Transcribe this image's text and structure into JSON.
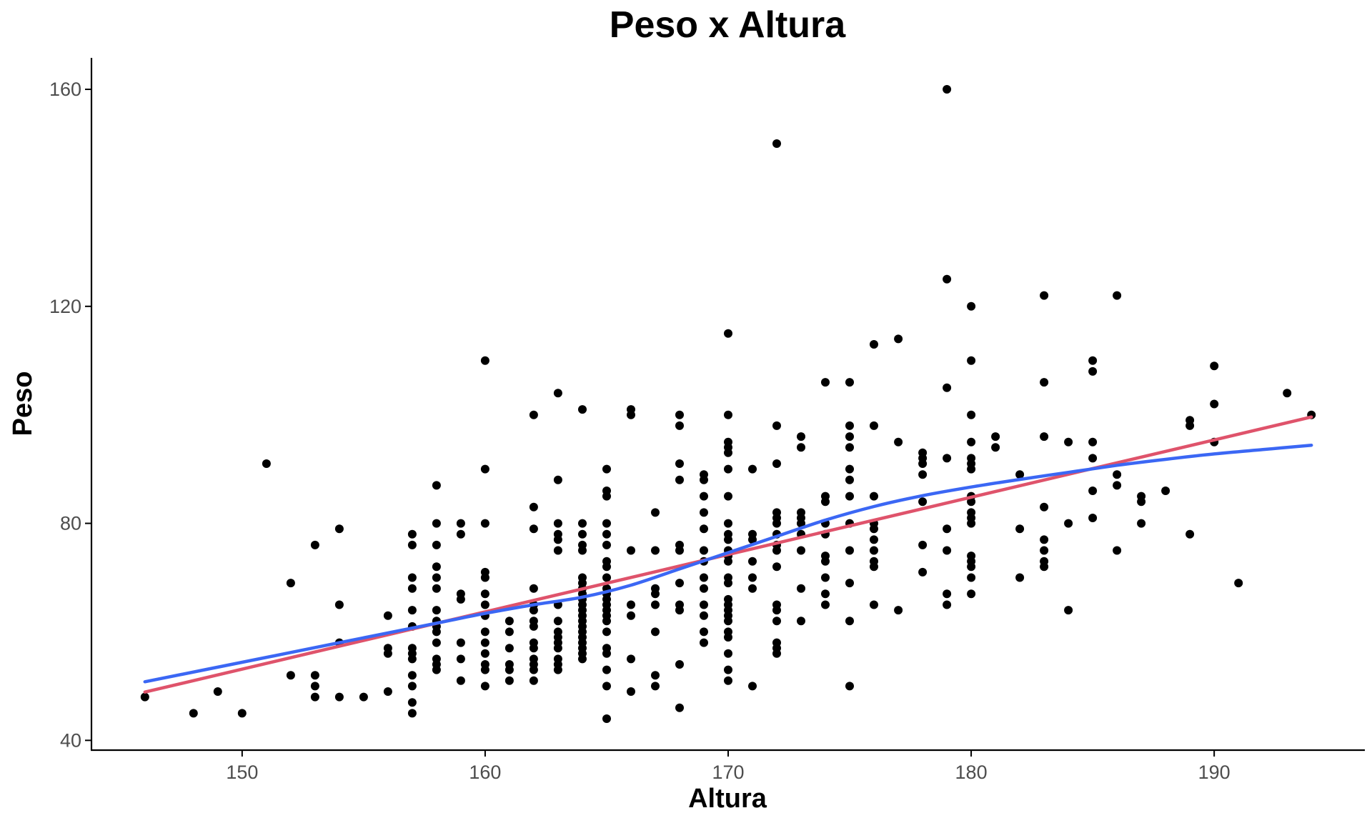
{
  "chart_data": {
    "type": "scatter",
    "title": "Peso x Altura",
    "xlabel": "Altura",
    "ylabel": "Peso",
    "xlim": [
      143.8,
      196.2
    ],
    "ylim": [
      38.2,
      165.8
    ],
    "xticks": [
      150,
      160,
      170,
      180,
      190
    ],
    "yticks": [
      40,
      80,
      120,
      160
    ],
    "grid": false,
    "colors": {
      "points": "#000000",
      "linear_fit": "#DF536B",
      "smooth_fit": "#3B67F4"
    },
    "points": [
      [
        146,
        48
      ],
      [
        148,
        45
      ],
      [
        149,
        49
      ],
      [
        150,
        45
      ],
      [
        151,
        91
      ],
      [
        152,
        69
      ],
      [
        152,
        52
      ],
      [
        153,
        76
      ],
      [
        153,
        52
      ],
      [
        153,
        50
      ],
      [
        153,
        48
      ],
      [
        154,
        79
      ],
      [
        154,
        65
      ],
      [
        154,
        58
      ],
      [
        154,
        48
      ],
      [
        155,
        48
      ],
      [
        156,
        63
      ],
      [
        156,
        57
      ],
      [
        156,
        56
      ],
      [
        156,
        49
      ],
      [
        157,
        78
      ],
      [
        157,
        76
      ],
      [
        157,
        70
      ],
      [
        157,
        68
      ],
      [
        157,
        64
      ],
      [
        157,
        61
      ],
      [
        157,
        57
      ],
      [
        157,
        56
      ],
      [
        157,
        55
      ],
      [
        157,
        52
      ],
      [
        157,
        50
      ],
      [
        157,
        47
      ],
      [
        157,
        45
      ],
      [
        158,
        87
      ],
      [
        158,
        80
      ],
      [
        158,
        76
      ],
      [
        158,
        72
      ],
      [
        158,
        70
      ],
      [
        158,
        68
      ],
      [
        158,
        64
      ],
      [
        158,
        62
      ],
      [
        158,
        61
      ],
      [
        158,
        60
      ],
      [
        158,
        58
      ],
      [
        158,
        55
      ],
      [
        158,
        54
      ],
      [
        158,
        53
      ],
      [
        159,
        80
      ],
      [
        159,
        78
      ],
      [
        159,
        67
      ],
      [
        159,
        66
      ],
      [
        159,
        58
      ],
      [
        159,
        55
      ],
      [
        159,
        51
      ],
      [
        160,
        110
      ],
      [
        160,
        90
      ],
      [
        160,
        80
      ],
      [
        160,
        71
      ],
      [
        160,
        70
      ],
      [
        160,
        67
      ],
      [
        160,
        65
      ],
      [
        160,
        63
      ],
      [
        160,
        60
      ],
      [
        160,
        58
      ],
      [
        160,
        56
      ],
      [
        160,
        54
      ],
      [
        160,
        53
      ],
      [
        160,
        50
      ],
      [
        161,
        62
      ],
      [
        161,
        60
      ],
      [
        161,
        57
      ],
      [
        161,
        54
      ],
      [
        161,
        53
      ],
      [
        161,
        51
      ],
      [
        162,
        100
      ],
      [
        162,
        83
      ],
      [
        162,
        79
      ],
      [
        162,
        68
      ],
      [
        162,
        65
      ],
      [
        162,
        64
      ],
      [
        162,
        62
      ],
      [
        162,
        61
      ],
      [
        162,
        58
      ],
      [
        162,
        57
      ],
      [
        162,
        55
      ],
      [
        162,
        54
      ],
      [
        162,
        53
      ],
      [
        162,
        51
      ],
      [
        163,
        104
      ],
      [
        163,
        88
      ],
      [
        163,
        80
      ],
      [
        163,
        78
      ],
      [
        163,
        77
      ],
      [
        163,
        75
      ],
      [
        163,
        65
      ],
      [
        163,
        62
      ],
      [
        163,
        60
      ],
      [
        163,
        59
      ],
      [
        163,
        58
      ],
      [
        163,
        57
      ],
      [
        163,
        55
      ],
      [
        163,
        54
      ],
      [
        163,
        53
      ],
      [
        164,
        101
      ],
      [
        164,
        80
      ],
      [
        164,
        78
      ],
      [
        164,
        76
      ],
      [
        164,
        75
      ],
      [
        164,
        70
      ],
      [
        164,
        69
      ],
      [
        164,
        68
      ],
      [
        164,
        67
      ],
      [
        164,
        66
      ],
      [
        164,
        65
      ],
      [
        164,
        64
      ],
      [
        164,
        63
      ],
      [
        164,
        62
      ],
      [
        164,
        61
      ],
      [
        164,
        60
      ],
      [
        164,
        59
      ],
      [
        164,
        58
      ],
      [
        164,
        57
      ],
      [
        164,
        56
      ],
      [
        164,
        55
      ],
      [
        165,
        90
      ],
      [
        165,
        86
      ],
      [
        165,
        85
      ],
      [
        165,
        80
      ],
      [
        165,
        78
      ],
      [
        165,
        76
      ],
      [
        165,
        73
      ],
      [
        165,
        72
      ],
      [
        165,
        70
      ],
      [
        165,
        68
      ],
      [
        165,
        67
      ],
      [
        165,
        66
      ],
      [
        165,
        65
      ],
      [
        165,
        64
      ],
      [
        165,
        63
      ],
      [
        165,
        62
      ],
      [
        165,
        60
      ],
      [
        165,
        57
      ],
      [
        165,
        56
      ],
      [
        165,
        53
      ],
      [
        165,
        50
      ],
      [
        165,
        44
      ],
      [
        166,
        101
      ],
      [
        166,
        100
      ],
      [
        166,
        75
      ],
      [
        166,
        65
      ],
      [
        166,
        63
      ],
      [
        166,
        55
      ],
      [
        166,
        49
      ],
      [
        167,
        82
      ],
      [
        167,
        75
      ],
      [
        167,
        68
      ],
      [
        167,
        67
      ],
      [
        167,
        65
      ],
      [
        167,
        60
      ],
      [
        167,
        52
      ],
      [
        167,
        50
      ],
      [
        168,
        100
      ],
      [
        168,
        98
      ],
      [
        168,
        91
      ],
      [
        168,
        88
      ],
      [
        168,
        76
      ],
      [
        168,
        75
      ],
      [
        168,
        69
      ],
      [
        168,
        65
      ],
      [
        168,
        64
      ],
      [
        168,
        54
      ],
      [
        168,
        46
      ],
      [
        169,
        89
      ],
      [
        169,
        88
      ],
      [
        169,
        85
      ],
      [
        169,
        82
      ],
      [
        169,
        79
      ],
      [
        169,
        75
      ],
      [
        169,
        73
      ],
      [
        169,
        70
      ],
      [
        169,
        68
      ],
      [
        169,
        65
      ],
      [
        169,
        63
      ],
      [
        169,
        60
      ],
      [
        169,
        58
      ],
      [
        170,
        115
      ],
      [
        170,
        100
      ],
      [
        170,
        95
      ],
      [
        170,
        94
      ],
      [
        170,
        93
      ],
      [
        170,
        90
      ],
      [
        170,
        85
      ],
      [
        170,
        80
      ],
      [
        170,
        78
      ],
      [
        170,
        77
      ],
      [
        170,
        75
      ],
      [
        170,
        74
      ],
      [
        170,
        73
      ],
      [
        170,
        70
      ],
      [
        170,
        69
      ],
      [
        170,
        66
      ],
      [
        170,
        65
      ],
      [
        170,
        64
      ],
      [
        170,
        63
      ],
      [
        170,
        62
      ],
      [
        170,
        60
      ],
      [
        170,
        59
      ],
      [
        170,
        56
      ],
      [
        170,
        53
      ],
      [
        170,
        51
      ],
      [
        171,
        90
      ],
      [
        171,
        78
      ],
      [
        171,
        77
      ],
      [
        171,
        73
      ],
      [
        171,
        70
      ],
      [
        171,
        68
      ],
      [
        171,
        50
      ],
      [
        172,
        150
      ],
      [
        172,
        98
      ],
      [
        172,
        91
      ],
      [
        172,
        82
      ],
      [
        172,
        81
      ],
      [
        172,
        80
      ],
      [
        172,
        78
      ],
      [
        172,
        76
      ],
      [
        172,
        75
      ],
      [
        172,
        72
      ],
      [
        172,
        65
      ],
      [
        172,
        64
      ],
      [
        172,
        62
      ],
      [
        172,
        58
      ],
      [
        172,
        57
      ],
      [
        172,
        56
      ],
      [
        173,
        96
      ],
      [
        173,
        94
      ],
      [
        173,
        82
      ],
      [
        173,
        81
      ],
      [
        173,
        80
      ],
      [
        173,
        78
      ],
      [
        173,
        75
      ],
      [
        173,
        68
      ],
      [
        173,
        62
      ],
      [
        174,
        106
      ],
      [
        174,
        85
      ],
      [
        174,
        84
      ],
      [
        174,
        80
      ],
      [
        174,
        78
      ],
      [
        174,
        74
      ],
      [
        174,
        73
      ],
      [
        174,
        70
      ],
      [
        174,
        67
      ],
      [
        174,
        65
      ],
      [
        175,
        106
      ],
      [
        175,
        98
      ],
      [
        175,
        96
      ],
      [
        175,
        94
      ],
      [
        175,
        90
      ],
      [
        175,
        88
      ],
      [
        175,
        85
      ],
      [
        175,
        80
      ],
      [
        175,
        75
      ],
      [
        175,
        69
      ],
      [
        175,
        62
      ],
      [
        175,
        50
      ],
      [
        176,
        113
      ],
      [
        176,
        98
      ],
      [
        176,
        85
      ],
      [
        176,
        80
      ],
      [
        176,
        79
      ],
      [
        176,
        77
      ],
      [
        176,
        75
      ],
      [
        176,
        73
      ],
      [
        176,
        72
      ],
      [
        176,
        65
      ],
      [
        177,
        114
      ],
      [
        177,
        95
      ],
      [
        177,
        64
      ],
      [
        178,
        93
      ],
      [
        178,
        92
      ],
      [
        178,
        91
      ],
      [
        178,
        89
      ],
      [
        178,
        84
      ],
      [
        178,
        76
      ],
      [
        178,
        71
      ],
      [
        179,
        160
      ],
      [
        179,
        125
      ],
      [
        179,
        105
      ],
      [
        179,
        92
      ],
      [
        179,
        79
      ],
      [
        179,
        75
      ],
      [
        179,
        67
      ],
      [
        179,
        65
      ],
      [
        180,
        120
      ],
      [
        180,
        110
      ],
      [
        180,
        100
      ],
      [
        180,
        95
      ],
      [
        180,
        92
      ],
      [
        180,
        91
      ],
      [
        180,
        90
      ],
      [
        180,
        85
      ],
      [
        180,
        84
      ],
      [
        180,
        82
      ],
      [
        180,
        81
      ],
      [
        180,
        80
      ],
      [
        180,
        74
      ],
      [
        180,
        73
      ],
      [
        180,
        72
      ],
      [
        180,
        70
      ],
      [
        180,
        67
      ],
      [
        181,
        96
      ],
      [
        181,
        94
      ],
      [
        182,
        89
      ],
      [
        182,
        79
      ],
      [
        182,
        70
      ],
      [
        183,
        122
      ],
      [
        183,
        106
      ],
      [
        183,
        96
      ],
      [
        183,
        83
      ],
      [
        183,
        77
      ],
      [
        183,
        75
      ],
      [
        183,
        73
      ],
      [
        183,
        72
      ],
      [
        184,
        95
      ],
      [
        184,
        80
      ],
      [
        184,
        64
      ],
      [
        185,
        110
      ],
      [
        185,
        108
      ],
      [
        185,
        95
      ],
      [
        185,
        92
      ],
      [
        185,
        86
      ],
      [
        185,
        81
      ],
      [
        186,
        122
      ],
      [
        186,
        89
      ],
      [
        186,
        87
      ],
      [
        186,
        75
      ],
      [
        187,
        85
      ],
      [
        187,
        84
      ],
      [
        187,
        80
      ],
      [
        188,
        86
      ],
      [
        189,
        99
      ],
      [
        189,
        98
      ],
      [
        189,
        78
      ],
      [
        190,
        109
      ],
      [
        190,
        102
      ],
      [
        190,
        95
      ],
      [
        191,
        69
      ],
      [
        193,
        104
      ],
      [
        194,
        100
      ]
    ],
    "series": [
      {
        "type": "linear-fit",
        "x": [
          146,
          194
        ],
        "y": [
          48.9,
          99.6
        ]
      },
      {
        "type": "smooth-fit",
        "x": [
          146,
          150,
          154,
          158,
          160,
          162,
          164,
          166,
          168,
          170,
          172,
          174,
          176,
          178,
          180,
          182,
          184,
          186,
          188,
          190,
          192,
          194
        ],
        "y": [
          50.8,
          54.4,
          58.0,
          61.6,
          63.4,
          65.0,
          66.4,
          68.6,
          71.6,
          74.6,
          77.6,
          80.6,
          83.1,
          85.1,
          86.7,
          88.1,
          89.4,
          90.7,
          91.8,
          92.8,
          93.6,
          94.4
        ]
      }
    ]
  }
}
